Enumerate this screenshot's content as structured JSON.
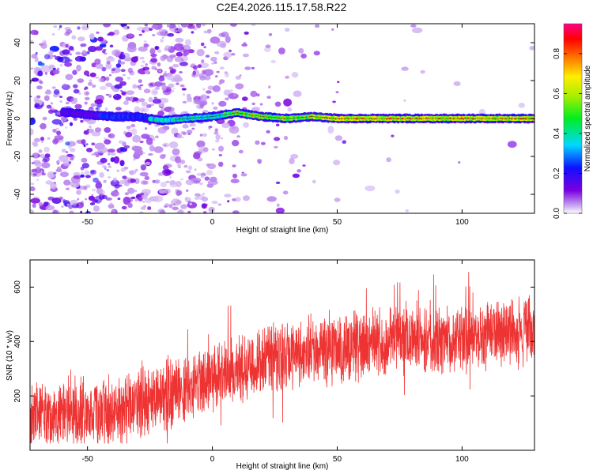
{
  "window_title": "C2E4.2026.115.17.58.R22",
  "chart_data": [
    {
      "type": "heatmap",
      "title": "C2E4.2026.115.17.58.R22",
      "xlabel": "Height of straight line (km)",
      "ylabel": "Frequency (Hz)",
      "xlim": [
        -73,
        129
      ],
      "ylim": [
        -50,
        50
      ],
      "x_ticks": [
        "-50",
        "0",
        "50",
        "100"
      ],
      "y_ticks": [
        "-40",
        "-20",
        "0",
        "20",
        "40"
      ],
      "colorbar": {
        "label": "Normalized spectral amplitude",
        "range": [
          0,
          0.95
        ],
        "ticks": [
          "0.0",
          "0.2",
          "0.4",
          "0.6",
          "0.8"
        ]
      },
      "ridge_frequency_hz": [
        [
          -73,
          5
        ],
        [
          -50,
          2
        ],
        [
          -40,
          1
        ],
        [
          -30,
          1
        ],
        [
          -20,
          -1
        ],
        [
          -10,
          0
        ],
        [
          0,
          1
        ],
        [
          10,
          3
        ],
        [
          15,
          2
        ],
        [
          20,
          1
        ],
        [
          30,
          0
        ],
        [
          40,
          1
        ],
        [
          50,
          0
        ],
        [
          60,
          0
        ],
        [
          70,
          0
        ],
        [
          80,
          0
        ],
        [
          90,
          0
        ],
        [
          100,
          0
        ],
        [
          110,
          0
        ],
        [
          129,
          0
        ]
      ],
      "noise_fade_x_km": -10
    },
    {
      "type": "line",
      "xlabel": "Height of straight line (km)",
      "ylabel": "SNR (10 * v/v)",
      "xlim": [
        -73,
        129
      ],
      "ylim": [
        0,
        700
      ],
      "x_ticks": [
        "-50",
        "0",
        "50",
        "100"
      ],
      "y_ticks": [
        "200",
        "400",
        "600"
      ],
      "series": [
        {
          "name": "SNR",
          "color": "#ee3333",
          "mean_trend": [
            [
              -73,
              130
            ],
            [
              -40,
              140
            ],
            [
              -20,
              200
            ],
            [
              0,
              260
            ],
            [
              20,
              330
            ],
            [
              40,
              360
            ],
            [
              60,
              390
            ],
            [
              80,
              400
            ],
            [
              100,
              410
            ],
            [
              129,
              440
            ]
          ],
          "typical_spread": 120,
          "peak_max": 690,
          "trough_min": 25
        }
      ]
    }
  ]
}
